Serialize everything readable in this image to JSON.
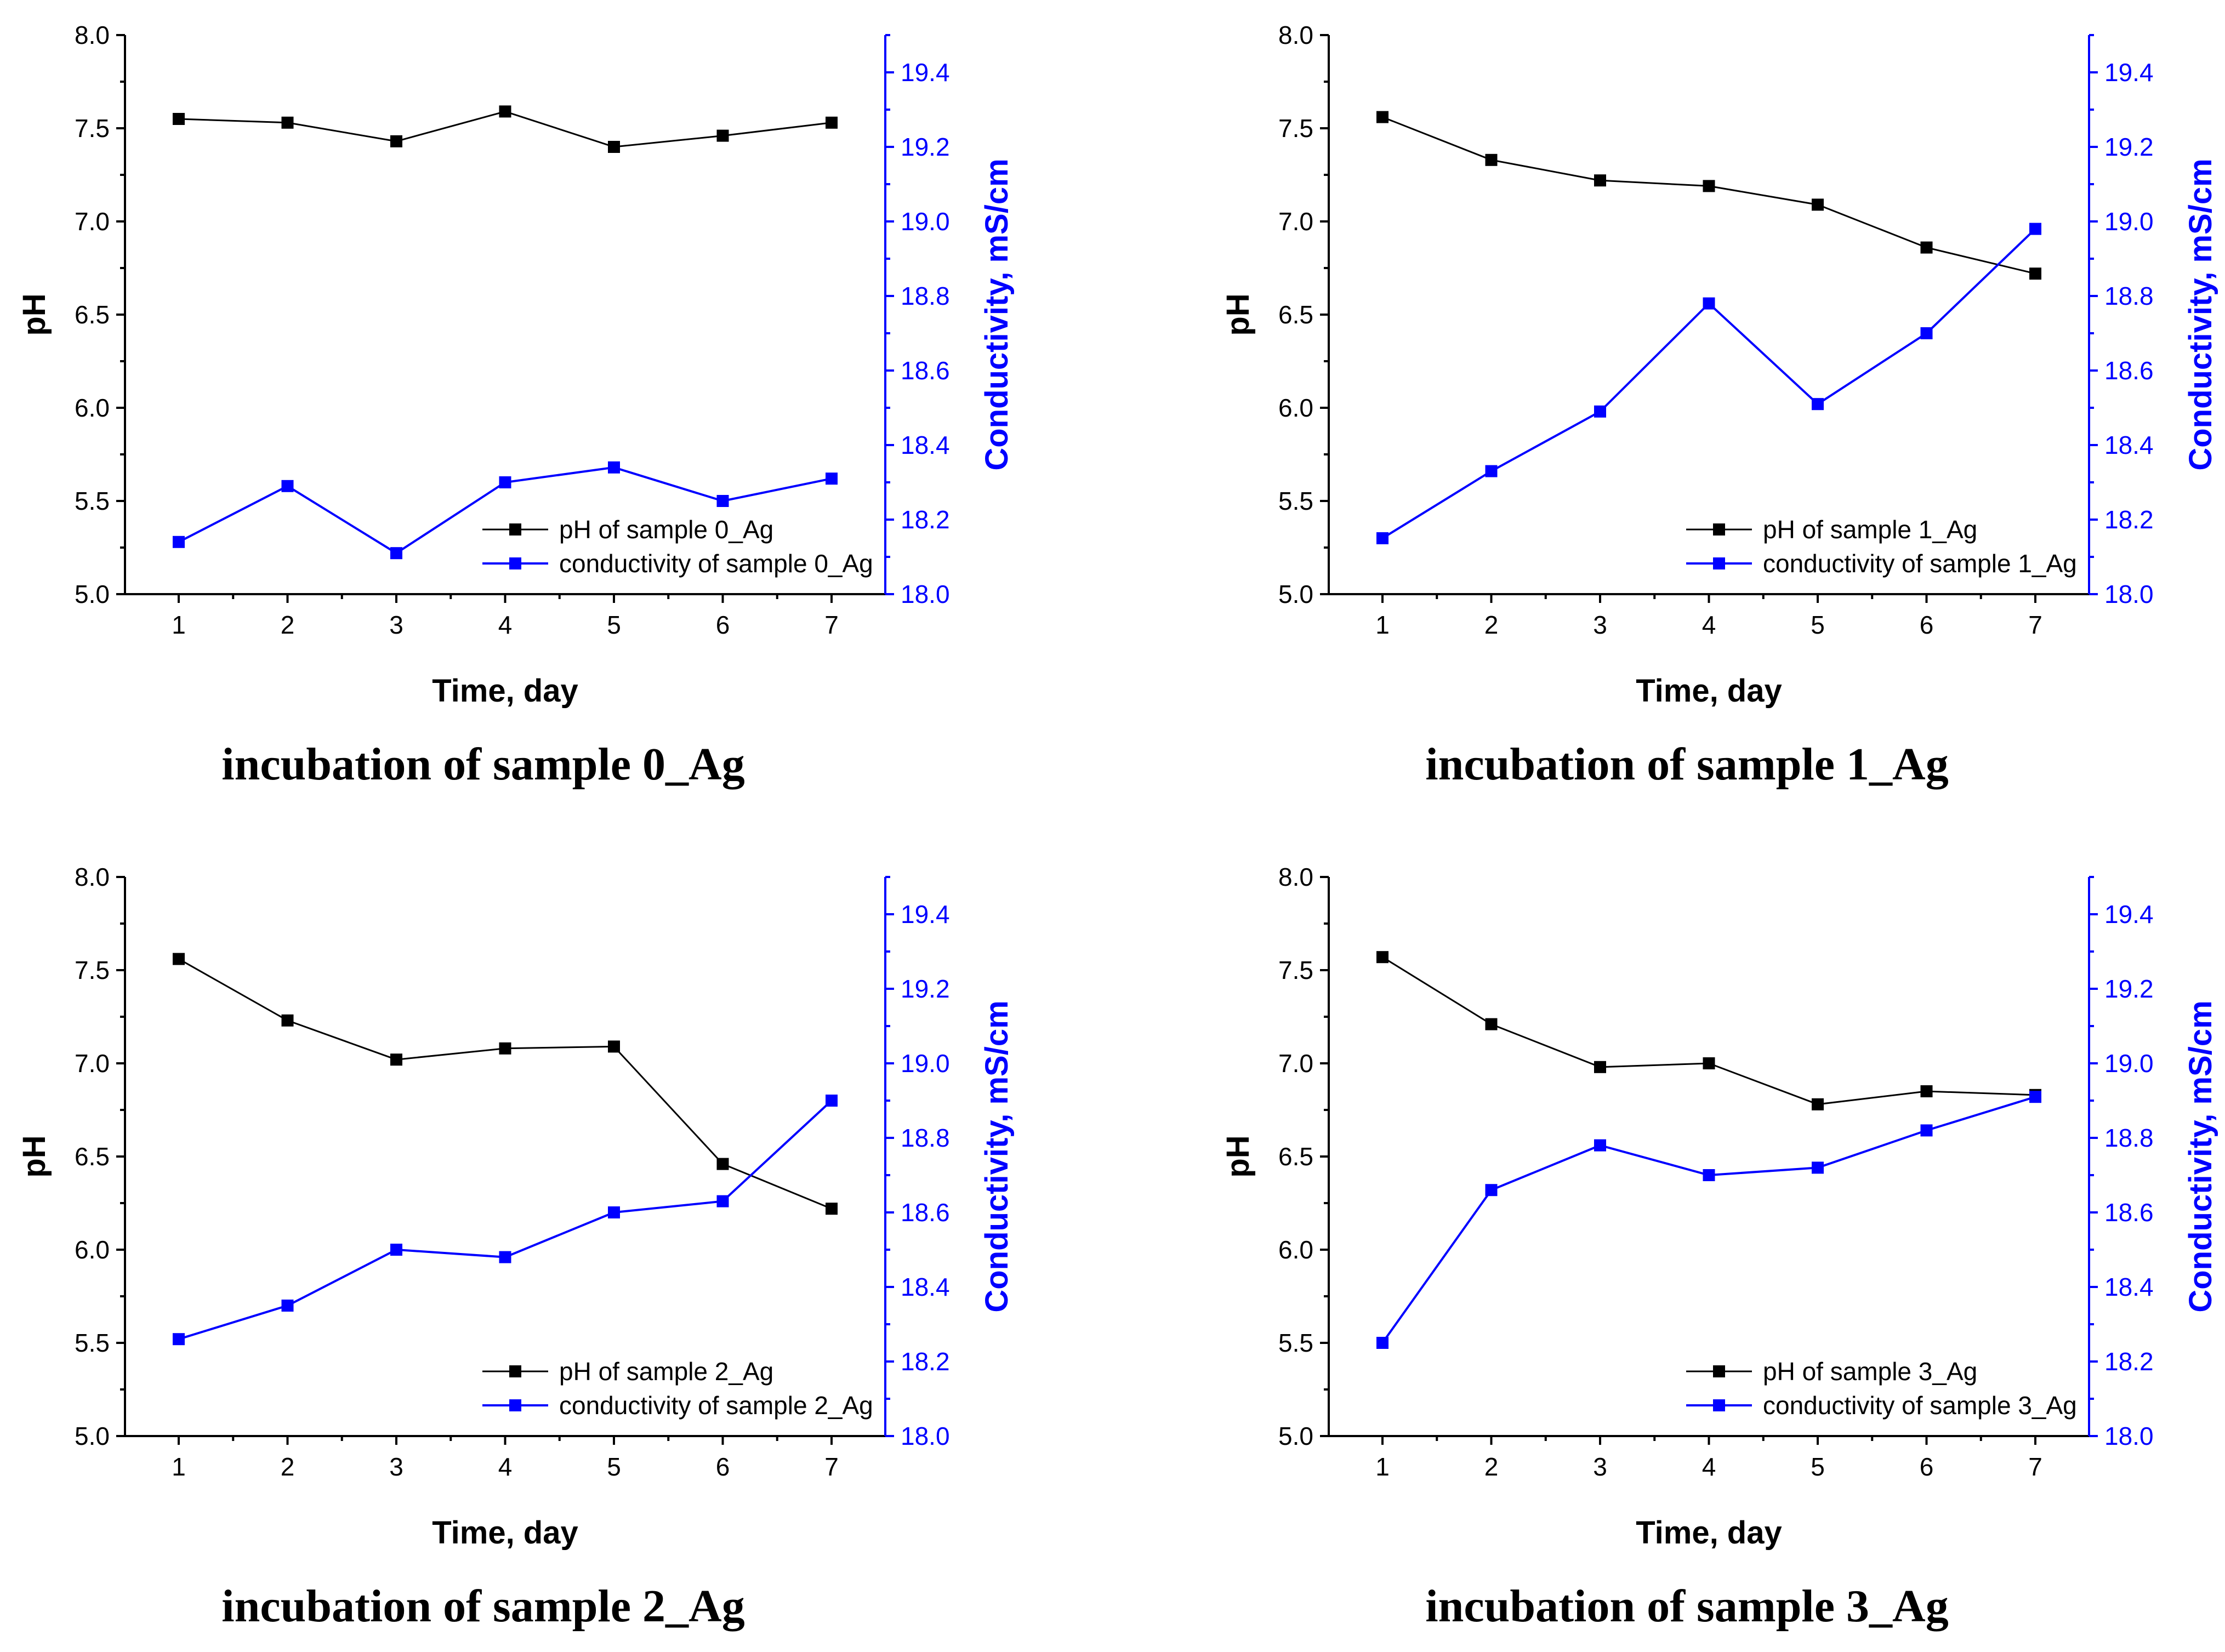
{
  "chart_data": [
    {
      "type": "line",
      "caption": "incubation of sample 0_Ag",
      "xlabel": "Time, day",
      "ylabel": "pH",
      "y2label": "Conductivity, mS/cm",
      "x": [
        1,
        2,
        3,
        4,
        5,
        6,
        7
      ],
      "xticks": [
        "1",
        "2",
        "3",
        "4",
        "5",
        "6",
        "7"
      ],
      "ylim": [
        5.0,
        8.0
      ],
      "yticks": [
        "5.0",
        "5.5",
        "6.0",
        "6.5",
        "7.0",
        "7.5",
        "8.0"
      ],
      "y2lim": [
        18.0,
        19.5
      ],
      "y2ticks": [
        "18.0",
        "18.2",
        "18.4",
        "18.6",
        "18.8",
        "19.0",
        "19.2",
        "19.4"
      ],
      "series": [
        {
          "name": "pH of sample 0_Ag",
          "axis": "left",
          "color": "#000000",
          "values": [
            7.55,
            7.53,
            7.43,
            7.59,
            7.4,
            7.46,
            7.53
          ]
        },
        {
          "name": "conductivity of sample 0_Ag",
          "axis": "right",
          "color": "#0000ff",
          "values": [
            18.14,
            18.29,
            18.11,
            18.3,
            18.34,
            18.25,
            18.31
          ]
        }
      ],
      "legend_position": "bottom-right"
    },
    {
      "type": "line",
      "caption": "incubation of sample 1_Ag",
      "xlabel": "Time, day",
      "ylabel": "pH",
      "y2label": "Conductivity, mS/cm",
      "x": [
        1,
        2,
        3,
        4,
        5,
        6,
        7
      ],
      "xticks": [
        "1",
        "2",
        "3",
        "4",
        "5",
        "6",
        "7"
      ],
      "ylim": [
        5.0,
        8.0
      ],
      "yticks": [
        "5.0",
        "5.5",
        "6.0",
        "6.5",
        "7.0",
        "7.5",
        "8.0"
      ],
      "y2lim": [
        18.0,
        19.5
      ],
      "y2ticks": [
        "18.0",
        "18.2",
        "18.4",
        "18.6",
        "18.8",
        "19.0",
        "19.2",
        "19.4"
      ],
      "series": [
        {
          "name": "pH of sample 1_Ag",
          "axis": "left",
          "color": "#000000",
          "values": [
            7.56,
            7.33,
            7.22,
            7.19,
            7.09,
            6.86,
            6.72
          ]
        },
        {
          "name": "conductivity of sample 1_Ag",
          "axis": "right",
          "color": "#0000ff",
          "values": [
            18.15,
            18.33,
            18.49,
            18.78,
            18.51,
            18.7,
            18.98
          ]
        }
      ],
      "legend_position": "bottom-right"
    },
    {
      "type": "line",
      "caption": "incubation of sample 2_Ag",
      "xlabel": "Time, day",
      "ylabel": "pH",
      "y2label": "Conductivity, mS/cm",
      "x": [
        1,
        2,
        3,
        4,
        5,
        6,
        7
      ],
      "xticks": [
        "1",
        "2",
        "3",
        "4",
        "5",
        "6",
        "7"
      ],
      "ylim": [
        5.0,
        8.0
      ],
      "yticks": [
        "5.0",
        "5.5",
        "6.0",
        "6.5",
        "7.0",
        "7.5",
        "8.0"
      ],
      "y2lim": [
        18.0,
        19.5
      ],
      "y2ticks": [
        "18.0",
        "18.2",
        "18.4",
        "18.6",
        "18.8",
        "19.0",
        "19.2",
        "19.4"
      ],
      "series": [
        {
          "name": "pH of sample 2_Ag",
          "axis": "left",
          "color": "#000000",
          "values": [
            7.56,
            7.23,
            7.02,
            7.08,
            7.09,
            6.46,
            6.22
          ]
        },
        {
          "name": "conductivity of sample 2_Ag",
          "axis": "right",
          "color": "#0000ff",
          "values": [
            18.26,
            18.35,
            18.5,
            18.48,
            18.6,
            18.63,
            18.9
          ]
        }
      ],
      "legend_position": "bottom-right"
    },
    {
      "type": "line",
      "caption": "incubation of sample 3_Ag",
      "xlabel": "Time, day",
      "ylabel": "pH",
      "y2label": "Conductivity, mS/cm",
      "x": [
        1,
        2,
        3,
        4,
        5,
        6,
        7
      ],
      "xticks": [
        "1",
        "2",
        "3",
        "4",
        "5",
        "6",
        "7"
      ],
      "ylim": [
        5.0,
        8.0
      ],
      "yticks": [
        "5.0",
        "5.5",
        "6.0",
        "6.5",
        "7.0",
        "7.5",
        "8.0"
      ],
      "y2lim": [
        18.0,
        19.5
      ],
      "y2ticks": [
        "18.0",
        "18.2",
        "18.4",
        "18.6",
        "18.8",
        "19.0",
        "19.2",
        "19.4"
      ],
      "series": [
        {
          "name": "pH of sample 3_Ag",
          "axis": "left",
          "color": "#000000",
          "values": [
            7.57,
            7.21,
            6.98,
            7.0,
            6.78,
            6.85,
            6.83
          ]
        },
        {
          "name": "conductivity of sample 3_Ag",
          "axis": "right",
          "color": "#0000ff",
          "values": [
            18.25,
            18.66,
            18.78,
            18.7,
            18.72,
            18.82,
            18.91
          ]
        }
      ],
      "legend_position": "bottom-right"
    }
  ]
}
